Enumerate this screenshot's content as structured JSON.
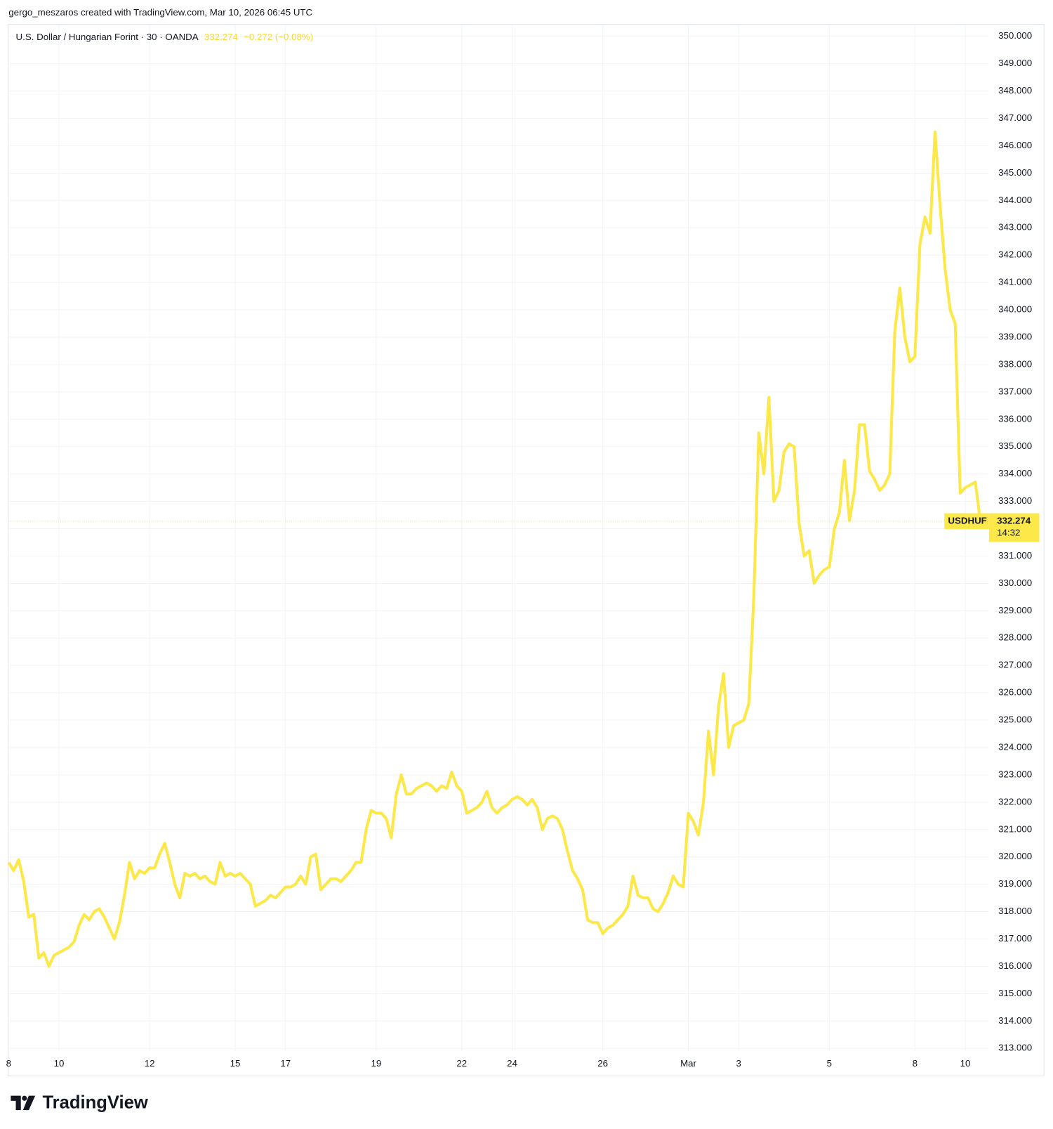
{
  "header": {
    "credit": "gergo_meszaros created with TradingView.com, Mar 10, 2026 06:45 UTC"
  },
  "footer": {
    "brand": "TradingView"
  },
  "chart_data": {
    "type": "line",
    "title": "U.S. Dollar / Hungarian Forint · 30 · OANDA",
    "last_price": 332.274,
    "change_label": "−0.272 (−0.08%)",
    "countdown": "14:32",
    "grid": true,
    "categories": [
      "8",
      null,
      null,
      null,
      null,
      null,
      null,
      null,
      null,
      null,
      "10",
      null,
      null,
      null,
      null,
      null,
      null,
      null,
      null,
      null,
      null,
      null,
      null,
      null,
      null,
      null,
      null,
      null,
      "12",
      null,
      null,
      null,
      null,
      null,
      null,
      null,
      null,
      null,
      null,
      null,
      null,
      null,
      null,
      null,
      null,
      "15",
      null,
      null,
      null,
      null,
      null,
      null,
      null,
      null,
      null,
      "17",
      null,
      null,
      null,
      null,
      null,
      null,
      null,
      null,
      null,
      null,
      null,
      null,
      null,
      null,
      null,
      null,
      null,
      "19",
      null,
      null,
      null,
      null,
      null,
      null,
      null,
      null,
      null,
      null,
      null,
      null,
      null,
      null,
      null,
      null,
      "22",
      null,
      null,
      null,
      null,
      null,
      null,
      null,
      null,
      null,
      "24",
      null,
      null,
      null,
      null,
      null,
      null,
      null,
      null,
      null,
      null,
      null,
      null,
      null,
      null,
      null,
      null,
      null,
      "26",
      null,
      null,
      null,
      null,
      null,
      null,
      null,
      null,
      null,
      null,
      null,
      null,
      null,
      null,
      null,
      null,
      "Mar",
      null,
      null,
      null,
      null,
      null,
      null,
      null,
      null,
      null,
      "3",
      null,
      null,
      null,
      null,
      null,
      null,
      null,
      null,
      null,
      null,
      null,
      null,
      null,
      null,
      null,
      null,
      null,
      "5",
      null,
      null,
      null,
      null,
      null,
      null,
      null,
      null,
      null,
      null,
      null,
      null,
      null,
      null,
      null,
      null,
      "8",
      null,
      null,
      null,
      null,
      null,
      null,
      null,
      null,
      null,
      "10",
      null,
      null,
      null,
      null,
      null
    ],
    "series": [
      {
        "name": "USDHUF",
        "color": "#fde84a",
        "values": [
          319.8,
          319.5,
          319.9,
          319.1,
          317.8,
          317.9,
          316.3,
          316.5,
          316.0,
          316.4,
          316.5,
          316.6,
          316.7,
          316.9,
          317.5,
          317.9,
          317.7,
          318.0,
          318.1,
          317.8,
          317.4,
          317.0,
          317.6,
          318.6,
          319.8,
          319.2,
          319.5,
          319.4,
          319.6,
          319.6,
          320.1,
          320.5,
          319.8,
          319.0,
          318.5,
          319.4,
          319.3,
          319.4,
          319.2,
          319.3,
          319.1,
          319.0,
          319.8,
          319.3,
          319.4,
          319.3,
          319.4,
          319.2,
          319.0,
          318.2,
          318.3,
          318.4,
          318.6,
          318.5,
          318.7,
          318.9,
          318.9,
          319.0,
          319.3,
          319.0,
          320.0,
          320.1,
          318.8,
          319.0,
          319.2,
          319.2,
          319.1,
          319.3,
          319.5,
          319.8,
          319.8,
          321.0,
          321.7,
          321.6,
          321.6,
          321.4,
          320.7,
          322.3,
          323.0,
          322.3,
          322.3,
          322.5,
          322.6,
          322.7,
          322.6,
          322.4,
          322.6,
          322.5,
          323.1,
          322.6,
          322.4,
          321.6,
          321.7,
          321.8,
          322.0,
          322.4,
          321.8,
          321.6,
          321.8,
          321.9,
          322.1,
          322.2,
          322.1,
          321.9,
          322.1,
          321.8,
          321.0,
          321.4,
          321.5,
          321.4,
          321.0,
          320.2,
          319.5,
          319.2,
          318.8,
          317.7,
          317.6,
          317.6,
          317.2,
          317.4,
          317.5,
          317.7,
          317.9,
          318.2,
          319.3,
          318.6,
          318.5,
          318.5,
          318.1,
          318.0,
          318.3,
          318.7,
          319.3,
          319.0,
          318.9,
          321.6,
          321.3,
          320.8,
          322.0,
          324.6,
          323.0,
          325.5,
          326.7,
          324.0,
          324.8,
          324.9,
          325.0,
          325.6,
          329.5,
          335.5,
          334.0,
          336.8,
          333.0,
          333.4,
          334.8,
          335.1,
          335.0,
          332.2,
          331.0,
          331.2,
          330.0,
          330.3,
          330.5,
          330.6,
          332.0,
          332.6,
          334.5,
          332.3,
          333.4,
          335.8,
          335.8,
          334.1,
          333.8,
          333.4,
          333.6,
          334.0,
          339.2,
          340.8,
          339.0,
          338.1,
          338.3,
          342.4,
          343.4,
          342.8,
          346.5,
          343.8,
          341.5,
          340.0,
          339.5,
          333.3,
          333.5,
          333.6,
          333.7,
          332.274,
          null,
          null
        ]
      }
    ],
    "ylim": [
      312.9,
      350.4
    ],
    "yticks": [
      {
        "value": 313,
        "label": "313.000"
      },
      {
        "value": 314,
        "label": "314.000"
      },
      {
        "value": 315,
        "label": "315.000"
      },
      {
        "value": 316,
        "label": "316.000"
      },
      {
        "value": 317,
        "label": "317.000"
      },
      {
        "value": 318,
        "label": "318.000"
      },
      {
        "value": 319,
        "label": "319.000"
      },
      {
        "value": 320,
        "label": "320.000"
      },
      {
        "value": 321,
        "label": "321.000"
      },
      {
        "value": 322,
        "label": "322.000"
      },
      {
        "value": 323,
        "label": "323.000"
      },
      {
        "value": 324,
        "label": "324.000"
      },
      {
        "value": 325,
        "label": "325.000"
      },
      {
        "value": 326,
        "label": "326.000"
      },
      {
        "value": 327,
        "label": "327.000"
      },
      {
        "value": 328,
        "label": "328.000"
      },
      {
        "value": 329,
        "label": "329.000"
      },
      {
        "value": 330,
        "label": "330.000"
      },
      {
        "value": 331,
        "label": "331.000"
      },
      {
        "value": 332,
        "label": "332.000"
      },
      {
        "value": 333,
        "label": "333.000"
      },
      {
        "value": 334,
        "label": "334.000"
      },
      {
        "value": 335,
        "label": "335.000"
      },
      {
        "value": 336,
        "label": "336.000"
      },
      {
        "value": 337,
        "label": "337.000"
      },
      {
        "value": 338,
        "label": "338.000"
      },
      {
        "value": 339,
        "label": "339.000"
      },
      {
        "value": 340,
        "label": "340.000"
      },
      {
        "value": 341,
        "label": "341.000"
      },
      {
        "value": 342,
        "label": "342.000"
      },
      {
        "value": 343,
        "label": "343.000"
      },
      {
        "value": 344,
        "label": "344.000"
      },
      {
        "value": 345,
        "label": "345.000"
      },
      {
        "value": 346,
        "label": "346.000"
      },
      {
        "value": 347,
        "label": "347.000"
      },
      {
        "value": 348,
        "label": "348.000"
      },
      {
        "value": 349,
        "label": "349.000"
      },
      {
        "value": 350,
        "label": "350.000"
      }
    ]
  }
}
